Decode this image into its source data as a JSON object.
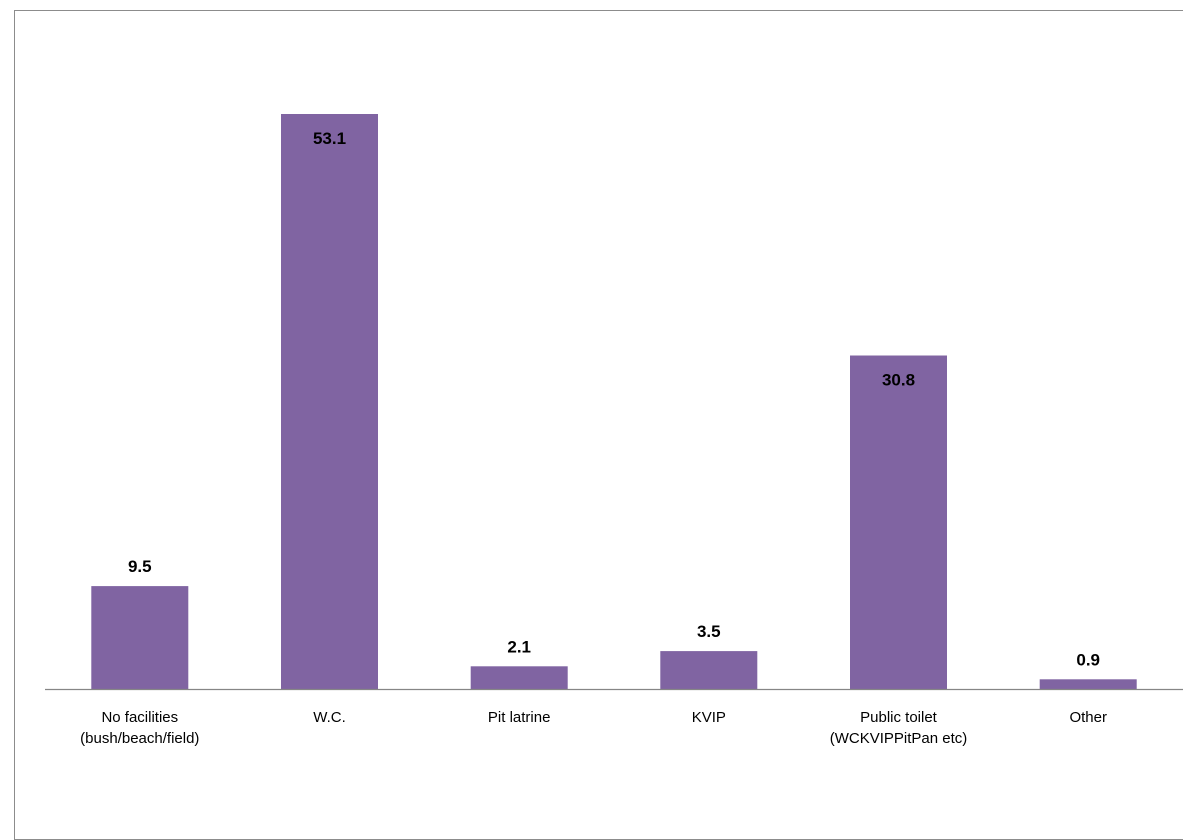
{
  "chart_data": {
    "type": "bar",
    "categories": [
      [
        "No facilities",
        "(bush/beach/field)"
      ],
      [
        "W.C."
      ],
      [
        "Pit latrine"
      ],
      [
        "KVIP"
      ],
      [
        "Public toilet",
        "(WCKVIPPitPan etc)"
      ],
      [
        "Other"
      ]
    ],
    "values": [
      9.5,
      53.1,
      2.1,
      3.5,
      30.8,
      0.9
    ],
    "value_labels": [
      "9.5",
      "53.1",
      "2.1",
      "3.5",
      "30.8",
      "0.9"
    ],
    "label_position": [
      "above",
      "inside-top",
      "above",
      "above",
      "inside-top",
      "above"
    ],
    "title": "",
    "xlabel": "",
    "ylabel": "",
    "ylim": [
      0,
      53.1
    ],
    "grid": false,
    "legend": "none",
    "bar_color": "#8064a2",
    "axis_color": "#868686"
  }
}
